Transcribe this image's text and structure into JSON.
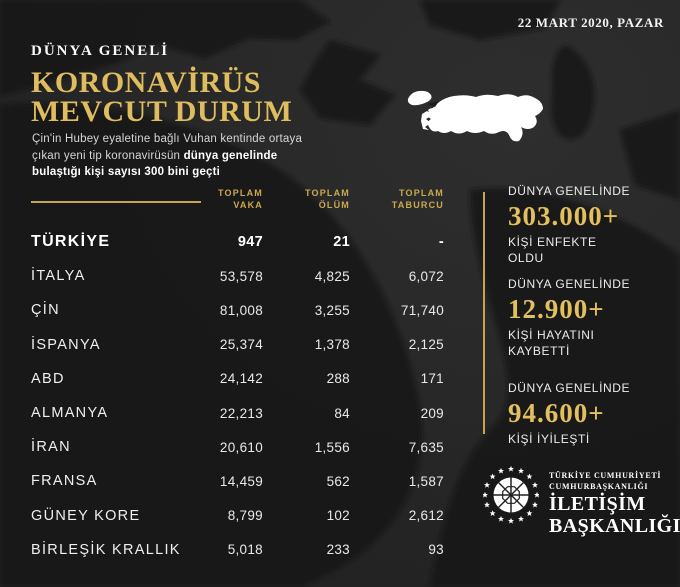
{
  "date": "22 MART 2020, PAZAR",
  "header": {
    "kicker": "DÜNYA GENELİ",
    "title_line1": "KORONAVİRÜS",
    "title_line2": "MEVCUT DURUM",
    "subtitle_line1": "Çin'in Hubey eyaletine bağlı Vuhan kentinde ortaya",
    "subtitle_line2_normal": "çıkan yeni tip koronavirüsün",
    "subtitle_line2_bold": "dünya genelinde",
    "subtitle_line3_bold": "bulaştığı kişi sayısı 300 bini geçti"
  },
  "table_headers": {
    "col1_line1": "TOPLAM",
    "col1_line2": "VAKA",
    "col2_line1": "TOPLAM",
    "col2_line2": "ÖLÜM",
    "col3_line1": "TOPLAM",
    "col3_line2": "TABURCU"
  },
  "stats_common_label": "DÜNYA GENELİNDE",
  "logo": {
    "line1": "TÜRKİYE CUMHURİYETİ",
    "line2": "CUMHURBAŞKANLIĞI",
    "line3": "İLETİŞİM",
    "line4": "BAŞKANLIĞI"
  },
  "colors": {
    "background": "#282828",
    "map_land": "#121212",
    "gold_title": "#DFBC5D",
    "gold_header": "#CBA94E",
    "gold_line": "#C7A64B",
    "gold_value": "#E2C05F",
    "turkey_silhouette": "#FFFFFF",
    "text_white": "#F3F3F3"
  },
  "chart_data": {
    "type": "table",
    "title": "KORONAVİRÜS MEVCUT DURUM",
    "kicker": "DÜNYA GENELİ",
    "date": "22 MART 2020, PAZAR",
    "columns": [
      "",
      "TOPLAM VAKA",
      "TOPLAM ÖLÜM",
      "TOPLAM TABURCU"
    ],
    "rows": [
      [
        "TÜRKİYE",
        "947",
        "21",
        "-"
      ],
      [
        "İTALYA",
        "53,578",
        "4,825",
        "6,072"
      ],
      [
        "ÇİN",
        "81,008",
        "3,255",
        "71,740"
      ],
      [
        "İSPANYA",
        "25,374",
        "1,378",
        "2,125"
      ],
      [
        "ABD",
        "24,142",
        "288",
        "171"
      ],
      [
        "ALMANYA",
        "22,213",
        "84",
        "209"
      ],
      [
        "İRAN",
        "20,610",
        "1,556",
        "7,635"
      ],
      [
        "FRANSA",
        "14,459",
        "562",
        "1,587"
      ],
      [
        "GÜNEY KORE",
        "8,799",
        "102",
        "2,612"
      ],
      [
        "BİRLEŞİK KRALLIK",
        "5,018",
        "233",
        "93"
      ]
    ],
    "highlight_row": "TÜRKİYE",
    "world_stats": [
      {
        "label": "KİŞİ ENFEKTE OLDU",
        "value": "303.000+"
      },
      {
        "label": "KİŞİ HAYATINI KAYBETTİ",
        "value": "12.900+"
      },
      {
        "label": "KİŞİ İYİLEŞTİ",
        "value": "94.600+"
      }
    ]
  }
}
